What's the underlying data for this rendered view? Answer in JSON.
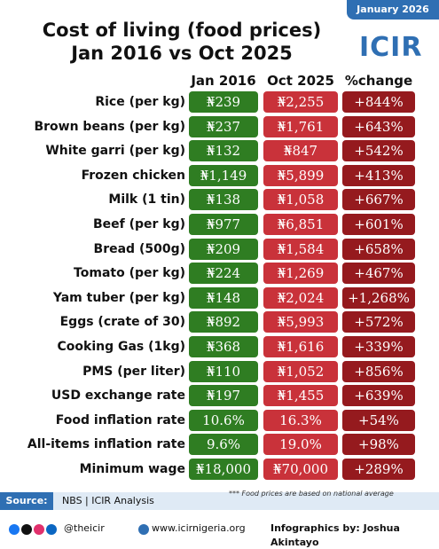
{
  "header": {
    "date": "January 2026",
    "title_line1": "Cost of living (food prices)",
    "title_line2": "Jan 2016 vs Oct 2025",
    "logo": "ICIR"
  },
  "table": {
    "columns": [
      "Jan 2016",
      "Oct 2025",
      "%change"
    ],
    "rows": [
      [
        "Rice (per kg)",
        "₦239",
        "₦2,255",
        "+844%"
      ],
      [
        "Brown beans (per kg)",
        "₦237",
        "₦1,761",
        "+643%"
      ],
      [
        "White garri (per kg)",
        "₦132",
        "₦847",
        "+542%"
      ],
      [
        "Frozen chicken",
        "₦1,149",
        "₦5,899",
        "+413%"
      ],
      [
        "Milk (1 tin)",
        "₦138",
        "₦1,058",
        "+667%"
      ],
      [
        "Beef (per kg)",
        "₦977",
        "₦6,851",
        "+601%"
      ],
      [
        "Bread (500g)",
        "₦209",
        "₦1,584",
        "+658%"
      ],
      [
        "Tomato (per kg)",
        "₦224",
        "₦1,269",
        "+467%"
      ],
      [
        "Yam tuber (per kg)",
        "₦148",
        "₦2,024",
        "+1,268%"
      ],
      [
        "Eggs (crate of 30)",
        "₦892",
        "₦5,993",
        "+572%"
      ],
      [
        "Cooking Gas (1kg)",
        "₦368",
        "₦1,616",
        "+339%"
      ],
      [
        "PMS (per liter)",
        "₦110",
        "₦1,052",
        "+856%"
      ],
      [
        "USD exchange rate",
        "₦197",
        "₦1,455",
        "+639%"
      ],
      [
        "Food inflation rate",
        "10.6%",
        "16.3%",
        "+54%"
      ],
      [
        "All-items inflation rate",
        "9.6%",
        "19.0%",
        "+98%"
      ],
      [
        "Minimum wage",
        "₦18,000",
        "₦70,000",
        "+289%"
      ]
    ]
  },
  "footer": {
    "source_label": "Source:",
    "source": "NBS | ICIR Analysis",
    "note": "*** Food prices are based on national average",
    "social": "@theicir",
    "website": "www.icirnigeria.org",
    "credit": "Infographics by: Joshua Akintayo"
  }
}
